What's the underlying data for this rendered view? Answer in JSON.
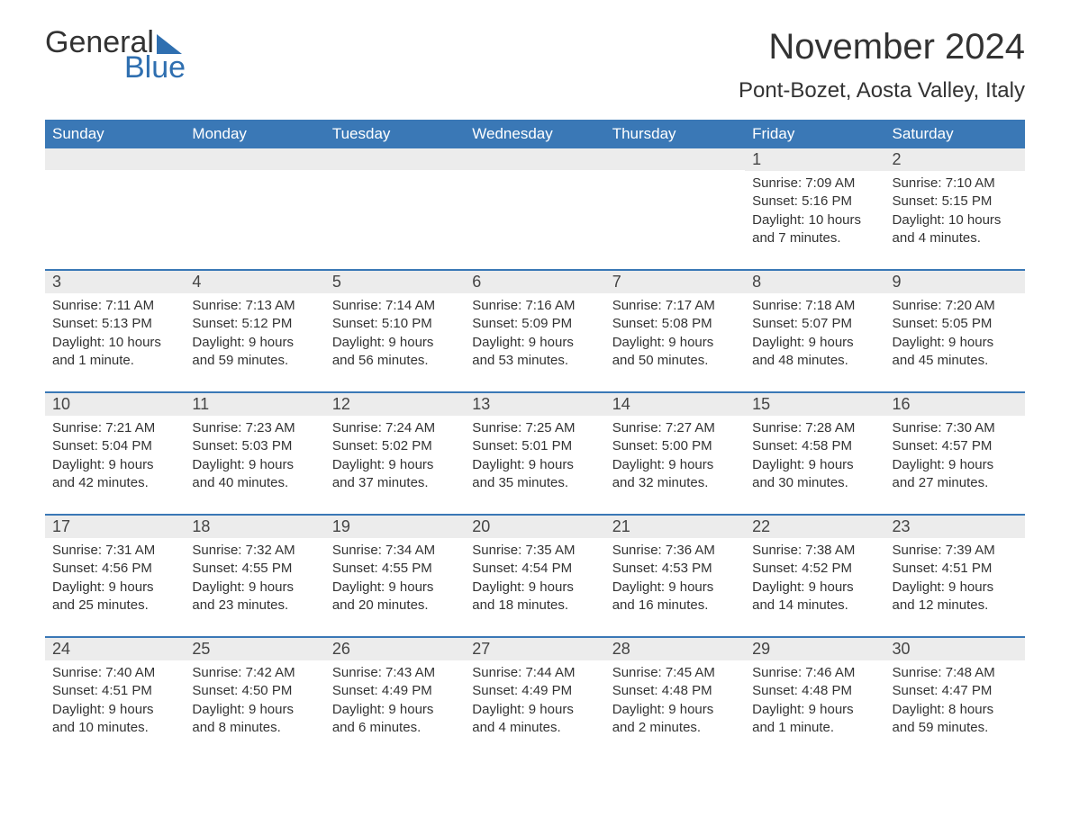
{
  "logo": {
    "word1": "General",
    "word2": "Blue"
  },
  "title": "November 2024",
  "location": "Pont-Bozet, Aosta Valley, Italy",
  "colors": {
    "header_bg": "#3a78b6",
    "header_text": "#ffffff",
    "daynum_bg": "#ececec",
    "accent": "#2f6fb0",
    "body_text": "#333333",
    "page_bg": "#ffffff"
  },
  "day_headers": [
    "Sunday",
    "Monday",
    "Tuesday",
    "Wednesday",
    "Thursday",
    "Friday",
    "Saturday"
  ],
  "weeks": [
    [
      {
        "empty": true
      },
      {
        "empty": true
      },
      {
        "empty": true
      },
      {
        "empty": true
      },
      {
        "empty": true
      },
      {
        "n": "1",
        "sunrise": "Sunrise: 7:09 AM",
        "sunset": "Sunset: 5:16 PM",
        "day1": "Daylight: 10 hours",
        "day2": "and 7 minutes."
      },
      {
        "n": "2",
        "sunrise": "Sunrise: 7:10 AM",
        "sunset": "Sunset: 5:15 PM",
        "day1": "Daylight: 10 hours",
        "day2": "and 4 minutes."
      }
    ],
    [
      {
        "n": "3",
        "sunrise": "Sunrise: 7:11 AM",
        "sunset": "Sunset: 5:13 PM",
        "day1": "Daylight: 10 hours",
        "day2": "and 1 minute."
      },
      {
        "n": "4",
        "sunrise": "Sunrise: 7:13 AM",
        "sunset": "Sunset: 5:12 PM",
        "day1": "Daylight: 9 hours",
        "day2": "and 59 minutes."
      },
      {
        "n": "5",
        "sunrise": "Sunrise: 7:14 AM",
        "sunset": "Sunset: 5:10 PM",
        "day1": "Daylight: 9 hours",
        "day2": "and 56 minutes."
      },
      {
        "n": "6",
        "sunrise": "Sunrise: 7:16 AM",
        "sunset": "Sunset: 5:09 PM",
        "day1": "Daylight: 9 hours",
        "day2": "and 53 minutes."
      },
      {
        "n": "7",
        "sunrise": "Sunrise: 7:17 AM",
        "sunset": "Sunset: 5:08 PM",
        "day1": "Daylight: 9 hours",
        "day2": "and 50 minutes."
      },
      {
        "n": "8",
        "sunrise": "Sunrise: 7:18 AM",
        "sunset": "Sunset: 5:07 PM",
        "day1": "Daylight: 9 hours",
        "day2": "and 48 minutes."
      },
      {
        "n": "9",
        "sunrise": "Sunrise: 7:20 AM",
        "sunset": "Sunset: 5:05 PM",
        "day1": "Daylight: 9 hours",
        "day2": "and 45 minutes."
      }
    ],
    [
      {
        "n": "10",
        "sunrise": "Sunrise: 7:21 AM",
        "sunset": "Sunset: 5:04 PM",
        "day1": "Daylight: 9 hours",
        "day2": "and 42 minutes."
      },
      {
        "n": "11",
        "sunrise": "Sunrise: 7:23 AM",
        "sunset": "Sunset: 5:03 PM",
        "day1": "Daylight: 9 hours",
        "day2": "and 40 minutes."
      },
      {
        "n": "12",
        "sunrise": "Sunrise: 7:24 AM",
        "sunset": "Sunset: 5:02 PM",
        "day1": "Daylight: 9 hours",
        "day2": "and 37 minutes."
      },
      {
        "n": "13",
        "sunrise": "Sunrise: 7:25 AM",
        "sunset": "Sunset: 5:01 PM",
        "day1": "Daylight: 9 hours",
        "day2": "and 35 minutes."
      },
      {
        "n": "14",
        "sunrise": "Sunrise: 7:27 AM",
        "sunset": "Sunset: 5:00 PM",
        "day1": "Daylight: 9 hours",
        "day2": "and 32 minutes."
      },
      {
        "n": "15",
        "sunrise": "Sunrise: 7:28 AM",
        "sunset": "Sunset: 4:58 PM",
        "day1": "Daylight: 9 hours",
        "day2": "and 30 minutes."
      },
      {
        "n": "16",
        "sunrise": "Sunrise: 7:30 AM",
        "sunset": "Sunset: 4:57 PM",
        "day1": "Daylight: 9 hours",
        "day2": "and 27 minutes."
      }
    ],
    [
      {
        "n": "17",
        "sunrise": "Sunrise: 7:31 AM",
        "sunset": "Sunset: 4:56 PM",
        "day1": "Daylight: 9 hours",
        "day2": "and 25 minutes."
      },
      {
        "n": "18",
        "sunrise": "Sunrise: 7:32 AM",
        "sunset": "Sunset: 4:55 PM",
        "day1": "Daylight: 9 hours",
        "day2": "and 23 minutes."
      },
      {
        "n": "19",
        "sunrise": "Sunrise: 7:34 AM",
        "sunset": "Sunset: 4:55 PM",
        "day1": "Daylight: 9 hours",
        "day2": "and 20 minutes."
      },
      {
        "n": "20",
        "sunrise": "Sunrise: 7:35 AM",
        "sunset": "Sunset: 4:54 PM",
        "day1": "Daylight: 9 hours",
        "day2": "and 18 minutes."
      },
      {
        "n": "21",
        "sunrise": "Sunrise: 7:36 AM",
        "sunset": "Sunset: 4:53 PM",
        "day1": "Daylight: 9 hours",
        "day2": "and 16 minutes."
      },
      {
        "n": "22",
        "sunrise": "Sunrise: 7:38 AM",
        "sunset": "Sunset: 4:52 PM",
        "day1": "Daylight: 9 hours",
        "day2": "and 14 minutes."
      },
      {
        "n": "23",
        "sunrise": "Sunrise: 7:39 AM",
        "sunset": "Sunset: 4:51 PM",
        "day1": "Daylight: 9 hours",
        "day2": "and 12 minutes."
      }
    ],
    [
      {
        "n": "24",
        "sunrise": "Sunrise: 7:40 AM",
        "sunset": "Sunset: 4:51 PM",
        "day1": "Daylight: 9 hours",
        "day2": "and 10 minutes."
      },
      {
        "n": "25",
        "sunrise": "Sunrise: 7:42 AM",
        "sunset": "Sunset: 4:50 PM",
        "day1": "Daylight: 9 hours",
        "day2": "and 8 minutes."
      },
      {
        "n": "26",
        "sunrise": "Sunrise: 7:43 AM",
        "sunset": "Sunset: 4:49 PM",
        "day1": "Daylight: 9 hours",
        "day2": "and 6 minutes."
      },
      {
        "n": "27",
        "sunrise": "Sunrise: 7:44 AM",
        "sunset": "Sunset: 4:49 PM",
        "day1": "Daylight: 9 hours",
        "day2": "and 4 minutes."
      },
      {
        "n": "28",
        "sunrise": "Sunrise: 7:45 AM",
        "sunset": "Sunset: 4:48 PM",
        "day1": "Daylight: 9 hours",
        "day2": "and 2 minutes."
      },
      {
        "n": "29",
        "sunrise": "Sunrise: 7:46 AM",
        "sunset": "Sunset: 4:48 PM",
        "day1": "Daylight: 9 hours",
        "day2": "and 1 minute."
      },
      {
        "n": "30",
        "sunrise": "Sunrise: 7:48 AM",
        "sunset": "Sunset: 4:47 PM",
        "day1": "Daylight: 8 hours",
        "day2": "and 59 minutes."
      }
    ]
  ]
}
